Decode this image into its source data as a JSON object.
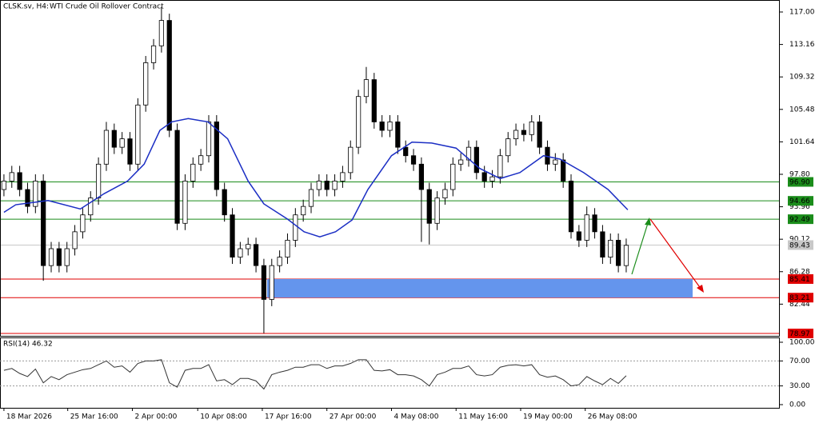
{
  "chart_data": [
    {
      "type": "candlestick",
      "symbol": "CLSK.sv, H4:",
      "title": "WTI Crude Oil Rollover Contract",
      "xlim": [
        -0.5,
        98.5
      ],
      "xticks": [
        {
          "value": 0,
          "label": "18 Mar 2026"
        },
        {
          "value": 8.1,
          "label": "25 Mar 16:00"
        },
        {
          "value": 16.3,
          "label": "2 Apr 00:00"
        },
        {
          "value": 24.6,
          "label": "10 Apr 08:00"
        },
        {
          "value": 32.8,
          "label": "17 Apr 16:00"
        },
        {
          "value": 41,
          "label": "27 Apr 00:00"
        },
        {
          "value": 49.2,
          "label": "4 May 08:00"
        },
        {
          "value": 57.4,
          "label": "11 May 16:00"
        },
        {
          "value": 65.6,
          "label": "19 May 00:00"
        },
        {
          "value": 73.8,
          "label": "26 May 08:00"
        }
      ],
      "ylim": [
        78.69,
        118.42
      ],
      "yticks": [
        {
          "value": 117,
          "label": "117.00"
        },
        113.16,
        109.32,
        105.48,
        101.64,
        {
          "value": 97.8,
          "label": "97.80"
        },
        93.96,
        90.12,
        86.28,
        82.44
      ],
      "ohlc": [
        [
          96,
          97.8,
          95.2,
          97
        ],
        [
          97,
          98.8,
          96.2,
          98
        ],
        [
          98,
          98.8,
          95.2,
          96
        ],
        [
          96,
          96.8,
          93.2,
          94
        ],
        [
          94,
          97.8,
          93.2,
          97
        ],
        [
          97,
          97.8,
          85.2,
          87
        ],
        [
          87,
          89.8,
          86.2,
          89
        ],
        [
          89,
          89.8,
          86.2,
          87
        ],
        [
          87,
          89.8,
          86.2,
          89
        ],
        [
          89,
          91.8,
          88.2,
          91
        ],
        [
          91,
          93.8,
          90.2,
          93
        ],
        [
          93,
          95.8,
          92.2,
          95
        ],
        [
          95,
          99.8,
          94.2,
          99
        ],
        [
          99,
          104,
          98.2,
          103
        ],
        [
          103,
          103.8,
          100.2,
          101
        ],
        [
          101,
          102.8,
          100.2,
          102
        ],
        [
          102,
          102.8,
          98.2,
          99
        ],
        [
          99,
          106.8,
          98.2,
          106
        ],
        [
          106,
          111.8,
          105.2,
          111
        ],
        [
          111,
          113.8,
          110.2,
          113
        ],
        [
          113,
          117.6,
          112.2,
          116
        ],
        [
          116,
          116.8,
          102.2,
          103
        ],
        [
          103,
          103.8,
          91.2,
          92
        ],
        [
          92,
          97.8,
          91.2,
          97
        ],
        [
          97,
          99.8,
          96.2,
          99
        ],
        [
          99,
          100.8,
          98.2,
          100
        ],
        [
          100,
          104.8,
          99.2,
          104
        ],
        [
          104,
          104.8,
          95.2,
          96
        ],
        [
          96,
          96.8,
          92.2,
          93
        ],
        [
          93,
          93.8,
          87.2,
          88
        ],
        [
          88,
          89.8,
          87.2,
          89
        ],
        [
          89,
          90.3,
          88.2,
          89.5
        ],
        [
          89.5,
          90.3,
          86.2,
          87
        ],
        [
          87,
          87.8,
          79,
          83
        ],
        [
          83,
          87.8,
          82.2,
          87
        ],
        [
          87,
          88.8,
          86.2,
          88
        ],
        [
          88,
          90.8,
          87.2,
          90
        ],
        [
          90,
          93.8,
          89.2,
          93
        ],
        [
          93,
          94.8,
          92.2,
          94
        ],
        [
          94,
          96.8,
          93.2,
          96
        ],
        [
          96,
          97.8,
          95.2,
          97
        ],
        [
          97,
          97.8,
          95.2,
          96
        ],
        [
          96,
          97.8,
          95.2,
          97
        ],
        [
          97,
          98.8,
          96.2,
          98
        ],
        [
          98,
          101.8,
          97.2,
          101
        ],
        [
          101,
          107.8,
          100.2,
          107
        ],
        [
          107,
          110.5,
          106.2,
          109
        ],
        [
          109,
          109.8,
          103.2,
          104
        ],
        [
          104,
          104.8,
          102.2,
          103
        ],
        [
          103,
          104.8,
          102.2,
          104
        ],
        [
          104,
          104.8,
          100.2,
          101
        ],
        [
          101,
          101.8,
          99.2,
          100
        ],
        [
          100,
          100.8,
          98.2,
          99
        ],
        [
          99,
          99.8,
          89.8,
          96
        ],
        [
          96,
          96.8,
          89.5,
          92
        ],
        [
          92,
          95.8,
          91.2,
          95
        ],
        [
          95,
          96.8,
          94.2,
          96
        ],
        [
          96,
          99.8,
          95.2,
          99
        ],
        [
          99,
          100.3,
          98.2,
          99.5
        ],
        [
          99.5,
          101.8,
          98.7,
          101
        ],
        [
          101,
          101.8,
          97.2,
          98
        ],
        [
          98,
          98.8,
          96.2,
          97
        ],
        [
          97,
          98.3,
          96.2,
          97.5
        ],
        [
          97.5,
          100.8,
          96.7,
          100
        ],
        [
          100,
          102.8,
          99.2,
          102
        ],
        [
          102,
          103.8,
          101.2,
          103
        ],
        [
          103,
          103.8,
          101.7,
          102.5
        ],
        [
          102.5,
          104.8,
          101.7,
          104
        ],
        [
          104,
          104.8,
          100.2,
          101
        ],
        [
          101,
          101.8,
          98.2,
          99
        ],
        [
          99,
          100.3,
          98.2,
          99.5
        ],
        [
          99.5,
          100.3,
          96.2,
          97
        ],
        [
          97,
          97.8,
          90.2,
          91
        ],
        [
          91,
          91.8,
          89.2,
          90
        ],
        [
          90,
          94,
          89.2,
          93
        ],
        [
          93,
          93.8,
          90.2,
          91
        ],
        [
          91,
          91.8,
          87.2,
          88
        ],
        [
          88,
          90.8,
          87.2,
          90
        ],
        [
          90,
          90.8,
          86.2,
          87
        ],
        [
          87,
          90.2,
          86.2,
          89.4
        ]
      ],
      "moving_average": {
        "color": "#1b2ec4",
        "x": [
          0,
          1.5,
          5.6,
          9.7,
          12.7,
          15.7,
          17.8,
          19.8,
          21.3,
          23.4,
          25.9,
          28.4,
          31,
          33,
          36,
          38.1,
          40.1,
          42.1,
          44.2,
          46.2,
          49.2,
          51.8,
          54.3,
          57.4,
          60.4,
          63,
          65.5,
          68.5,
          70.6,
          73.6,
          76.7,
          79.2
        ],
        "values": [
          93.3,
          94.2,
          94.7,
          93.7,
          95.5,
          97,
          99,
          103,
          104,
          104.4,
          104,
          102,
          97,
          94.3,
          92.5,
          91,
          90.4,
          91,
          92.4,
          96,
          100,
          101.6,
          101.5,
          100.9,
          98.5,
          97.3,
          98,
          100,
          99.6,
          98,
          96,
          93.6
        ]
      },
      "levels": [
        {
          "value": 96.9,
          "label": "96.90",
          "color": "#1a8c1a"
        },
        {
          "value": 94.66,
          "label": "94.66",
          "color": "#1a8c1a"
        },
        {
          "value": 92.49,
          "label": "92.49",
          "color": "#1a8c1a"
        },
        {
          "value": 85.41,
          "label": "85.41",
          "color": "#e00000"
        },
        {
          "value": 83.21,
          "label": "83.21",
          "color": "#e00000"
        },
        {
          "value": 78.97,
          "label": "78.97",
          "color": "#e00000"
        }
      ],
      "current_price": 89.43,
      "zone_color": "#6495ed"
    },
    {
      "type": "line",
      "title": "RSI(14) 46.32",
      "color": "#333333",
      "ylim": [
        -5.1,
        107.7
      ],
      "yticks": [
        {
          "value": 100,
          "label": "100.00"
        },
        {
          "value": 70,
          "label": "70.00"
        },
        {
          "value": 30,
          "label": "30.00"
        },
        {
          "value": 0,
          "label": "0.00"
        }
      ],
      "values": [
        55,
        58,
        50,
        45,
        57,
        35,
        45,
        40,
        48,
        52,
        56,
        58,
        64,
        70,
        60,
        62,
        52,
        66,
        70,
        70,
        72,
        35,
        28,
        55,
        58,
        58,
        64,
        38,
        40,
        32,
        42,
        42,
        38,
        25,
        48,
        52,
        55,
        60,
        60,
        64,
        64,
        58,
        62,
        62,
        66,
        72,
        72,
        55,
        54,
        56,
        48,
        48,
        46,
        40,
        30,
        48,
        52,
        58,
        58,
        62,
        48,
        46,
        48,
        60,
        63,
        64,
        62,
        64,
        48,
        44,
        46,
        40,
        30,
        32,
        45,
        38,
        32,
        42,
        34,
        46.32
      ]
    }
  ]
}
